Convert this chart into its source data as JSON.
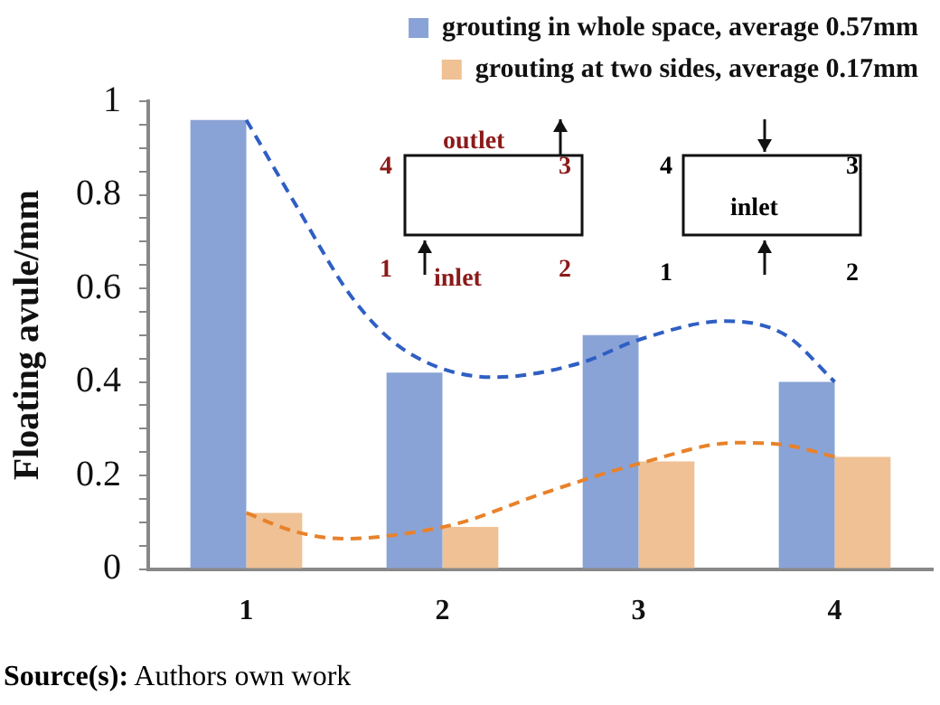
{
  "chart_data": {
    "type": "bar",
    "ylabel": "Floating avule/mm",
    "x": [
      1,
      2,
      3,
      4
    ],
    "xlim": [
      0.5,
      4.5
    ],
    "xticks": [
      1,
      2,
      3,
      4
    ],
    "series": [
      {
        "name": "grouting in whole space, average 0.57mm",
        "color": "#8aa3d6",
        "values": [
          0.96,
          0.42,
          0.5,
          0.4
        ]
      },
      {
        "name": "grouting at two sides, average 0.17mm",
        "color": "#efc194",
        "values": [
          0.12,
          0.09,
          0.23,
          0.24
        ]
      },
      {
        "type": "line",
        "color": "#2f5fc4",
        "line_style": "dashed",
        "marker": "none",
        "x": [
          1,
          1.25,
          1.54,
          1.8,
          2.26,
          2.7,
          3.0,
          3.44,
          3.75,
          4.0
        ],
        "values": [
          0.96,
          0.78,
          0.58,
          0.47,
          0.41,
          0.44,
          0.49,
          0.53,
          0.5,
          0.4
        ]
      },
      {
        "type": "line",
        "color": "#e8822a",
        "line_style": "dashed",
        "marker": "none",
        "x": [
          1,
          1.25,
          1.5,
          1.8,
          2.1,
          2.5,
          3.0,
          3.5,
          3.75,
          4.0
        ],
        "values": [
          0.12,
          0.08,
          0.065,
          0.075,
          0.1,
          0.16,
          0.225,
          0.27,
          0.265,
          0.24
        ]
      }
    ],
    "ylim": [
      0,
      1
    ],
    "yticks": [
      0,
      {
        "value": 0.05,
        "label": null
      },
      {
        "value": 0.1,
        "label": null
      },
      {
        "value": 0.15,
        "label": null
      },
      0.2,
      {
        "value": 0.25,
        "label": null
      },
      {
        "value": 0.3,
        "label": null
      },
      {
        "value": 0.35,
        "label": null
      },
      0.4,
      {
        "value": 0.45,
        "label": null
      },
      {
        "value": 0.5,
        "label": null
      },
      {
        "value": 0.55,
        "label": null
      },
      0.6,
      {
        "value": 0.65,
        "label": null
      },
      {
        "value": 0.7,
        "label": null
      },
      {
        "value": 0.75,
        "label": null
      },
      0.8,
      {
        "value": 0.85,
        "label": null
      },
      {
        "value": 0.9,
        "label": null
      },
      {
        "value": 0.95,
        "label": null
      },
      1
    ],
    "grid": false,
    "legend": "top right",
    "annotations": [
      "Source(s): Authors own work",
      "4",
      "outlet",
      "3",
      "1",
      "inlet",
      "2",
      "4",
      "3",
      "inlet",
      "1",
      "2"
    ]
  }
}
